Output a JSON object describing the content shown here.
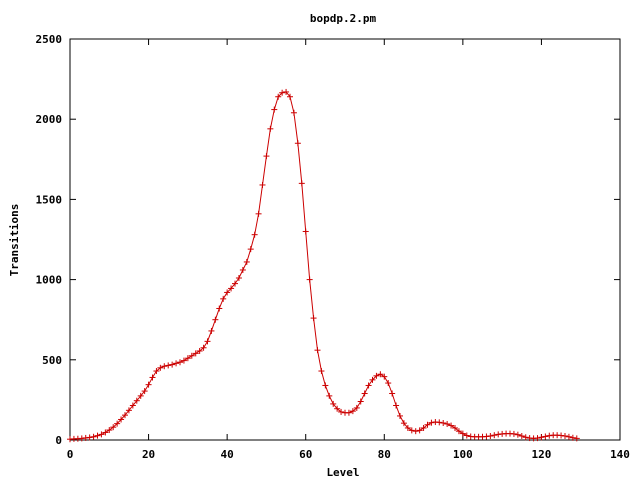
{
  "chart_data": {
    "type": "line",
    "title": "bopdp.2.pm",
    "xlabel": "Level",
    "ylabel": "Transitions",
    "xlim": [
      0,
      140
    ],
    "ylim": [
      0,
      2500
    ],
    "xticks": [
      0,
      20,
      40,
      60,
      80,
      100,
      120,
      140
    ],
    "yticks": [
      0,
      500,
      1000,
      1500,
      2000,
      2500
    ],
    "grid": false,
    "legend": "none",
    "marker": "plus",
    "series": [
      {
        "color": "#cc0000",
        "x": [
          0,
          1,
          2,
          3,
          4,
          5,
          6,
          7,
          8,
          9,
          10,
          11,
          12,
          13,
          14,
          15,
          16,
          17,
          18,
          19,
          20,
          21,
          22,
          23,
          24,
          25,
          26,
          27,
          28,
          29,
          30,
          31,
          32,
          33,
          34,
          35,
          36,
          37,
          38,
          39,
          40,
          41,
          42,
          43,
          44,
          45,
          46,
          47,
          48,
          49,
          50,
          51,
          52,
          53,
          54,
          55,
          56,
          57,
          58,
          59,
          60,
          61,
          62,
          63,
          64,
          65,
          66,
          67,
          68,
          69,
          70,
          71,
          72,
          73,
          74,
          75,
          76,
          77,
          78,
          79,
          80,
          81,
          82,
          83,
          84,
          85,
          86,
          87,
          88,
          89,
          90,
          91,
          92,
          93,
          94,
          95,
          96,
          97,
          98,
          99,
          100,
          101,
          102,
          103,
          104,
          105,
          106,
          107,
          108,
          109,
          110,
          111,
          112,
          113,
          114,
          115,
          116,
          117,
          118,
          119,
          120,
          121,
          122,
          123,
          124,
          125,
          126,
          127,
          128,
          129
        ],
        "y": [
          5,
          7,
          8,
          10,
          13,
          16,
          20,
          27,
          35,
          47,
          62,
          80,
          102,
          128,
          155,
          185,
          215,
          245,
          275,
          305,
          345,
          390,
          430,
          450,
          460,
          465,
          470,
          478,
          485,
          495,
          510,
          525,
          540,
          555,
          575,
          615,
          680,
          750,
          820,
          880,
          920,
          945,
          975,
          1010,
          1060,
          1110,
          1190,
          1280,
          1410,
          1590,
          1770,
          1940,
          2060,
          2140,
          2165,
          2170,
          2140,
          2040,
          1850,
          1600,
          1300,
          1000,
          760,
          560,
          430,
          340,
          275,
          225,
          195,
          175,
          170,
          170,
          180,
          200,
          240,
          290,
          340,
          375,
          400,
          410,
          395,
          355,
          290,
          215,
          150,
          105,
          75,
          60,
          55,
          60,
          75,
          95,
          108,
          112,
          110,
          106,
          100,
          90,
          75,
          55,
          40,
          28,
          22,
          20,
          20,
          20,
          22,
          25,
          30,
          35,
          38,
          40,
          40,
          38,
          33,
          25,
          17,
          12,
          10,
          12,
          17,
          22,
          27,
          30,
          30,
          28,
          25,
          20,
          14,
          10
        ],
        "last_x": 129
      }
    ]
  }
}
